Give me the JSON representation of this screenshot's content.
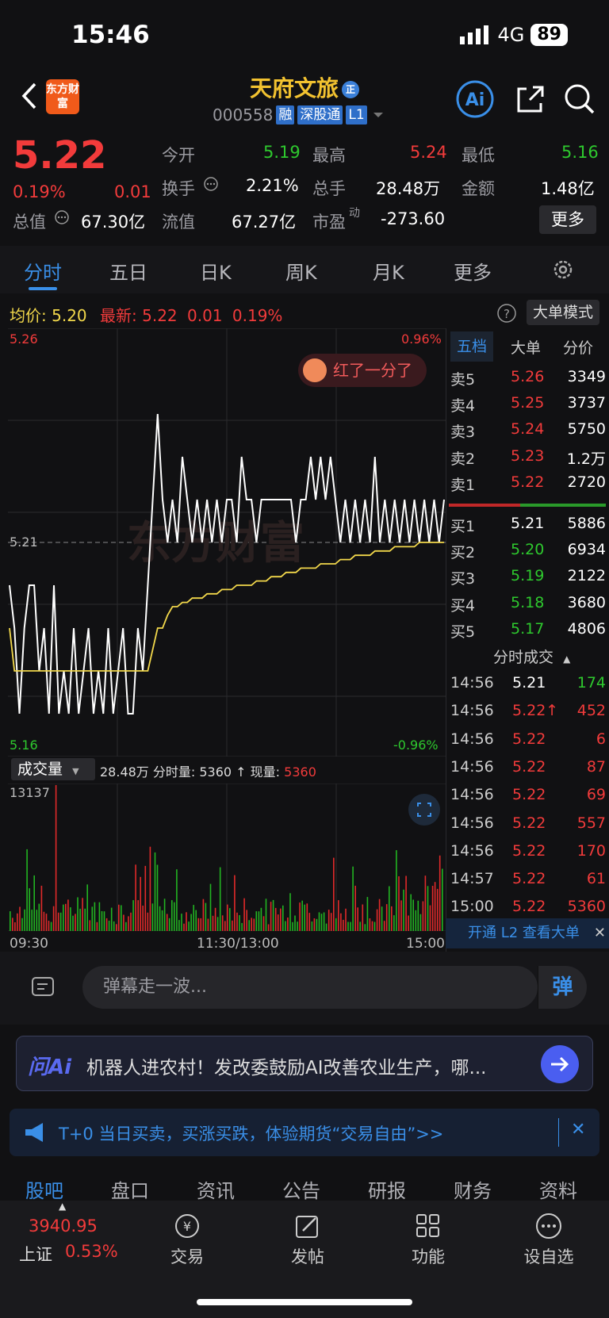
{
  "status": {
    "time": "15:46",
    "network": "4G",
    "battery": "89"
  },
  "header": {
    "logo_text": "东方财富",
    "title": "天府文旅",
    "title_badge": "正",
    "code": "000558",
    "tags": [
      "融",
      "深股通",
      "L1"
    ]
  },
  "quote": {
    "price": "5.22",
    "change_pct": "0.19%",
    "change": "0.01",
    "open_label": "今开",
    "open": "5.19",
    "high_label": "最高",
    "high": "5.24",
    "low_label": "最低",
    "low": "5.16",
    "turnover_label": "换手",
    "turnover": "2.21%",
    "volume_label": "总手",
    "volume": "28.48万",
    "amount_label": "金额",
    "amount": "1.48亿",
    "mktcap_label": "总值",
    "mktcap": "67.30亿",
    "float_label": "流值",
    "float": "67.27亿",
    "pe_label": "市盈",
    "pe_sup": "动",
    "pe": "-273.60",
    "more": "更多"
  },
  "tabs": [
    "分时",
    "五日",
    "日K",
    "周K",
    "月K",
    "更多"
  ],
  "chart_info": {
    "avg_label": "均价:",
    "avg": "5.20",
    "latest_label": "最新:",
    "latest": "5.22",
    "latest_change": "0.01",
    "latest_pct": "0.19%",
    "big_order_mode": "大单模式",
    "y_top": "5.26",
    "y_mid": "5.21",
    "y_bottom": "5.16",
    "pct_top": "0.96%",
    "pct_bottom": "-0.96%",
    "bubble": "红了一分了",
    "watermark": "东方财富",
    "volume_dropdown": "成交量",
    "volume_summary": "28.48万 分时量: 5360 ↑ 现量: ",
    "now_volume": "5360",
    "vol_max": "13137",
    "time_start": "09:30",
    "time_mid": "11:30/13:00",
    "time_end": "15:00"
  },
  "chart_data": {
    "type": "line",
    "x_range": [
      "09:30",
      "15:00"
    ],
    "ylim": [
      5.16,
      5.26
    ],
    "series": [
      {
        "name": "",
        "color": "#ffffff",
        "values": [
          5.2,
          5.19,
          5.17,
          5.19,
          5.2,
          5.2,
          5.18,
          5.19,
          5.17,
          5.2,
          5.17,
          5.18,
          5.17,
          5.19,
          5.17,
          5.18,
          5.19,
          5.17,
          5.18,
          5.17,
          5.19,
          5.17,
          5.18,
          5.19,
          5.17,
          5.17,
          5.19,
          5.18,
          5.2,
          5.22,
          5.24,
          5.22,
          5.21,
          5.22,
          5.21,
          5.23,
          5.22,
          5.21,
          5.22,
          5.21,
          5.22,
          5.21,
          5.22,
          5.21,
          5.22,
          5.22,
          5.21,
          5.23,
          5.22,
          5.22,
          5.21,
          5.22,
          5.22,
          5.22,
          5.22,
          5.22,
          5.22,
          5.22,
          5.21,
          5.22,
          5.22,
          5.23,
          5.22,
          5.23,
          5.22,
          5.23,
          5.22,
          5.21,
          5.22,
          5.21,
          5.22,
          5.21,
          5.22,
          5.21,
          5.23,
          5.21,
          5.22,
          5.21,
          5.22,
          5.21,
          5.22,
          5.21,
          5.22,
          5.21,
          5.22,
          5.21,
          5.22,
          5.21,
          5.22
        ]
      },
      {
        "name": "",
        "color": "#f2d84b",
        "values": [
          5.19,
          5.18,
          5.18,
          5.18,
          5.18,
          5.18,
          5.18,
          5.18,
          5.18,
          5.18,
          5.18,
          5.18,
          5.18,
          5.18,
          5.18,
          5.18,
          5.18,
          5.18,
          5.18,
          5.18,
          5.18,
          5.18,
          5.18,
          5.18,
          5.18,
          5.18,
          5.18,
          5.18,
          5.18,
          5.185,
          5.19,
          5.19,
          5.193,
          5.195,
          5.195,
          5.196,
          5.196,
          5.197,
          5.197,
          5.197,
          5.198,
          5.198,
          5.198,
          5.199,
          5.199,
          5.199,
          5.2,
          5.2,
          5.2,
          5.2,
          5.201,
          5.201,
          5.201,
          5.202,
          5.202,
          5.202,
          5.203,
          5.203,
          5.203,
          5.204,
          5.204,
          5.204,
          5.204,
          5.205,
          5.205,
          5.205,
          5.205,
          5.206,
          5.206,
          5.206,
          5.207,
          5.207,
          5.207,
          5.207,
          5.208,
          5.208,
          5.208,
          5.208,
          5.209,
          5.209,
          5.209,
          5.209,
          5.209,
          5.21,
          5.21,
          5.21,
          5.21,
          5.21,
          5.21
        ]
      }
    ]
  },
  "volume_chart": {
    "type": "bar",
    "ylim": [
      0,
      13137
    ]
  },
  "order_book": {
    "tabs": [
      "五档",
      "大单",
      "分价"
    ],
    "asks": [
      {
        "label": "卖5",
        "price": "5.26",
        "vol": "3349"
      },
      {
        "label": "卖4",
        "price": "5.25",
        "vol": "3737"
      },
      {
        "label": "卖3",
        "price": "5.24",
        "vol": "5750"
      },
      {
        "label": "卖2",
        "price": "5.23",
        "vol": "1.2万"
      },
      {
        "label": "卖1",
        "price": "5.22",
        "vol": "2720"
      }
    ],
    "bids": [
      {
        "label": "买1",
        "price": "5.21",
        "vol": "5886"
      },
      {
        "label": "买2",
        "price": "5.20",
        "vol": "6934"
      },
      {
        "label": "买3",
        "price": "5.19",
        "vol": "2122"
      },
      {
        "label": "买4",
        "price": "5.18",
        "vol": "3680"
      },
      {
        "label": "买5",
        "price": "5.17",
        "vol": "4806"
      }
    ],
    "ticks_title": "分时成交",
    "ticks": [
      {
        "time": "14:56",
        "price": "5.21",
        "vol": "174",
        "pc": "white",
        "vc": "green"
      },
      {
        "time": "14:56",
        "price": "5.22↑",
        "vol": "452",
        "pc": "red",
        "vc": "red"
      },
      {
        "time": "14:56",
        "price": "5.22",
        "vol": "6",
        "pc": "red",
        "vc": "red"
      },
      {
        "time": "14:56",
        "price": "5.22",
        "vol": "87",
        "pc": "red",
        "vc": "red"
      },
      {
        "time": "14:56",
        "price": "5.22",
        "vol": "69",
        "pc": "red",
        "vc": "red"
      },
      {
        "time": "14:56",
        "price": "5.22",
        "vol": "557",
        "pc": "red",
        "vc": "red"
      },
      {
        "time": "14:56",
        "price": "5.22",
        "vol": "170",
        "pc": "red",
        "vc": "red"
      },
      {
        "time": "14:57",
        "price": "5.22",
        "vol": "61",
        "pc": "red",
        "vc": "red"
      },
      {
        "time": "15:00",
        "price": "5.22",
        "vol": "5360",
        "pc": "red",
        "vc": "red"
      }
    ],
    "l2_banner": "开通 L2 查看大单"
  },
  "chat": {
    "placeholder": "弹幕走一波...",
    "danmu_btn": "弹"
  },
  "ai": {
    "label": "问Ai",
    "text": "机器人进农村！发改委鼓励AI改善农业生产，哪..."
  },
  "promo": {
    "text": "T+0 当日买卖，买涨买跌，体验期货“交易自由”>>"
  },
  "sub_tabs": [
    "股吧",
    "盘口",
    "资讯",
    "公告",
    "研报",
    "财务",
    "资料"
  ],
  "bottom_nav": {
    "index_value": "3940.95",
    "index_name": "上证",
    "index_pct": "0.53%",
    "items": [
      "交易",
      "发帖",
      "功能",
      "设自选"
    ]
  }
}
